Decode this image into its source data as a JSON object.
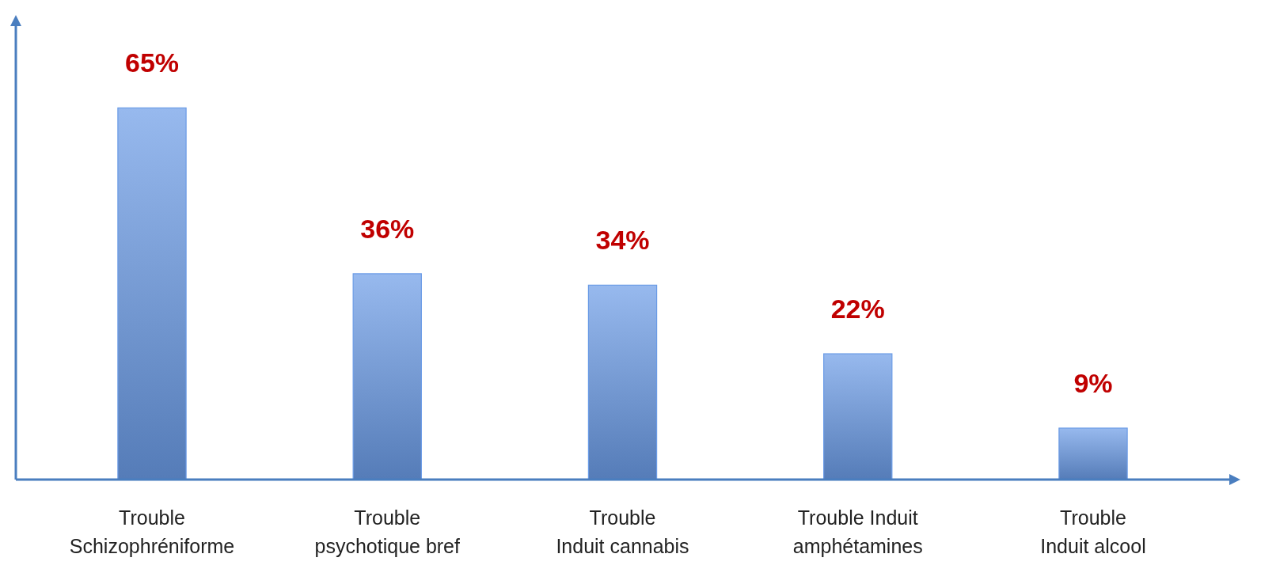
{
  "chart_data": {
    "type": "bar",
    "categories": [
      "Trouble\nSchizophréniforme",
      "Trouble\npsychotique bref",
      "Trouble\nInduit cannabis",
      "Trouble Induit\namphétamines",
      "Trouble\nInduit alcool"
    ],
    "values": [
      65,
      36,
      34,
      22,
      9
    ],
    "value_labels": [
      "65%",
      "36%",
      "34%",
      "22%",
      "9%"
    ],
    "color": "#6a9be6"
  }
}
